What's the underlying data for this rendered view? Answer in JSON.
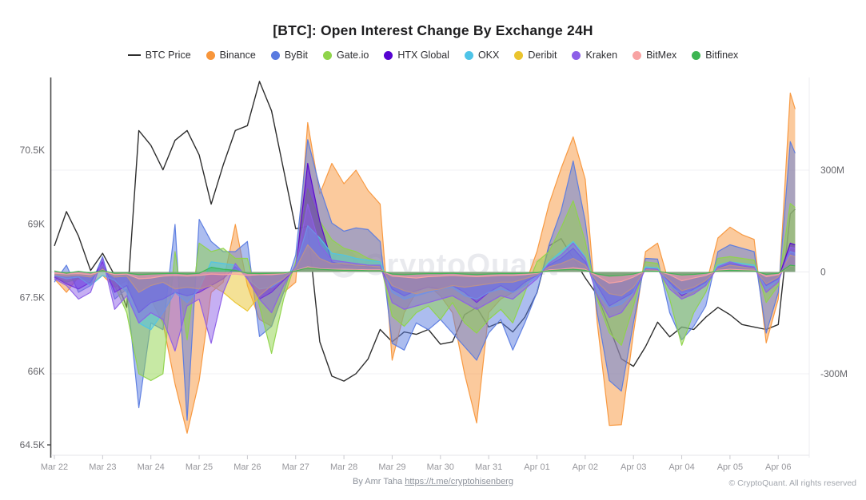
{
  "header": {
    "title": "[BTC]: Open Interest Change By Exchange 24H"
  },
  "watermark": "CryptoQuant",
  "footer": {
    "byline_prefix": "By Amr Taha ",
    "byline_link": "https://t.me/cryptohisenberg",
    "copyright": "© CryptoQuant. All rights reserved"
  },
  "chart_data": {
    "type": "mixed-line-area",
    "title": "[BTC]: Open Interest Change By Exchange 24H",
    "legend_position": "top",
    "grid": "horizontal-faint",
    "x_unit": "days since Mar 22",
    "x_tick_labels": [
      "Mar 22",
      "Mar 23",
      "Mar 24",
      "Mar 25",
      "Mar 26",
      "Mar 27",
      "Mar 28",
      "Mar 29",
      "Mar 30",
      "Mar 31",
      "Apr 01",
      "Apr 02",
      "Apr 03",
      "Apr 04",
      "Apr 05",
      "Apr 06"
    ],
    "x_tick_days": [
      0,
      1,
      2,
      3,
      4,
      5,
      6,
      7,
      8,
      9,
      10,
      11,
      12,
      13,
      14,
      15
    ],
    "left_axis": {
      "unit": "BTC price (USD thousands)",
      "range": [
        64.1,
        72.1
      ],
      "ticks": [
        {
          "v": 70.5,
          "label": "70.5K"
        },
        {
          "v": 69,
          "label": "69K"
        },
        {
          "v": 67.5,
          "label": "67.5K"
        },
        {
          "v": 66,
          "label": "66K"
        },
        {
          "v": 64.5,
          "label": "64.5K"
        }
      ]
    },
    "right_axis": {
      "unit": "Open interest change (USD)",
      "range_m": [
        -560,
        570
      ],
      "ticks": [
        {
          "v": 300,
          "label": "300M"
        },
        {
          "v": 0,
          "label": "0"
        },
        {
          "v": -300,
          "label": "-300M"
        }
      ]
    },
    "x": [
      0,
      0.25,
      0.5,
      0.75,
      1,
      1.25,
      1.5,
      1.75,
      2,
      2.25,
      2.5,
      2.75,
      3,
      3.25,
      3.5,
      3.75,
      4,
      4.25,
      4.5,
      4.75,
      5,
      5.25,
      5.5,
      5.75,
      6,
      6.25,
      6.5,
      6.75,
      7,
      7.25,
      7.5,
      7.75,
      8,
      8.25,
      8.5,
      8.75,
      9,
      9.25,
      9.5,
      9.75,
      10,
      10.25,
      10.5,
      10.75,
      11,
      11.25,
      11.5,
      11.75,
      12,
      12.25,
      12.5,
      12.75,
      13,
      13.25,
      13.5,
      13.75,
      14,
      14.25,
      14.5,
      14.75,
      15,
      15.25,
      15.35
    ],
    "btc_price": {
      "name": "BTC Price",
      "color": "#2e2e2e",
      "axis": "left",
      "values_k": [
        68.55,
        69.25,
        68.75,
        68.05,
        68.4,
        67.95,
        67.3,
        70.9,
        70.6,
        70.1,
        70.7,
        70.9,
        70.4,
        69.4,
        70.2,
        70.9,
        71,
        71.9,
        71.3,
        70.1,
        68.9,
        68.95,
        66.6,
        65.9,
        65.8,
        65.95,
        66.25,
        66.85,
        66.6,
        66.8,
        66.75,
        66.85,
        66.55,
        66.6,
        67.15,
        67.3,
        66.9,
        67,
        66.8,
        67.1,
        67.6,
        68.55,
        68.7,
        68.3,
        67.9,
        67.55,
        66.9,
        66.25,
        66.1,
        66.5,
        67,
        66.7,
        66.9,
        66.85,
        67.1,
        67.3,
        67.15,
        66.95,
        66.9,
        66.85,
        66.95,
        69.2,
        69.3
      ]
    },
    "series": [
      {
        "name": "Binance",
        "color": "#F8963B",
        "values_m": [
          -20,
          -60,
          -15,
          -35,
          -10,
          -45,
          -25,
          -120,
          -80,
          -150,
          -330,
          -475,
          -320,
          -60,
          -30,
          140,
          -40,
          -140,
          -160,
          -60,
          -30,
          440,
          230,
          320,
          260,
          300,
          240,
          200,
          -260,
          -120,
          -60,
          -40,
          -70,
          -120,
          -300,
          -445,
          -120,
          -80,
          -60,
          -40,
          60,
          200,
          305,
          398,
          273,
          -150,
          -452,
          -450,
          -180,
          60,
          85,
          -40,
          -80,
          -60,
          -40,
          100,
          132,
          110,
          96,
          -209,
          -80,
          527,
          480
        ]
      },
      {
        "name": "ByBit",
        "color": "#5A7BE0",
        "values_m": [
          -30,
          20,
          -60,
          -40,
          45,
          -80,
          -50,
          -400,
          -150,
          -170,
          140,
          -437,
          155,
          90,
          60,
          60,
          90,
          -190,
          -160,
          -60,
          50,
          390,
          250,
          144,
          120,
          130,
          125,
          90,
          -210,
          -230,
          -150,
          -170,
          -140,
          -180,
          -220,
          -260,
          -180,
          -140,
          -230,
          -150,
          -60,
          80,
          180,
          327,
          150,
          -120,
          -320,
          -351,
          -150,
          40,
          38,
          -120,
          -200,
          -160,
          -100,
          60,
          80,
          70,
          60,
          -180,
          -60,
          384,
          350
        ]
      },
      {
        "name": "Gate.io",
        "color": "#8FD44A",
        "values_m": [
          -15,
          -30,
          -20,
          -25,
          15,
          -40,
          -120,
          -300,
          -320,
          -300,
          60,
          -200,
          85,
          60,
          70,
          40,
          40,
          -100,
          -240,
          -80,
          30,
          245,
          150,
          95,
          70,
          60,
          40,
          30,
          -130,
          -160,
          -120,
          -100,
          -140,
          -90,
          -150,
          -180,
          -140,
          -110,
          -150,
          -60,
          30,
          60,
          130,
          210,
          90,
          -80,
          -179,
          -216,
          -100,
          30,
          25,
          -80,
          -216,
          -120,
          -60,
          40,
          45,
          40,
          35,
          -90,
          -40,
          202,
          190
        ]
      },
      {
        "name": "HTX Global",
        "color": "#5603D1",
        "values_m": [
          -15,
          -35,
          -50,
          -30,
          30,
          -60,
          -40,
          -120,
          -90,
          -80,
          -60,
          -70,
          -60,
          -40,
          -20,
          15,
          -15,
          -80,
          -60,
          -25,
          10,
          320,
          150,
          30,
          20,
          20,
          15,
          15,
          -50,
          -70,
          -55,
          -45,
          -50,
          -40,
          -60,
          -90,
          -60,
          -40,
          -60,
          -30,
          -10,
          20,
          40,
          70,
          30,
          -40,
          -100,
          -80,
          -60,
          10,
          8,
          -30,
          -70,
          -50,
          -30,
          12,
          25,
          18,
          12,
          -40,
          -20,
          85,
          80
        ]
      },
      {
        "name": "OKX",
        "color": "#4EC4E8",
        "values_m": [
          -10,
          -20,
          -15,
          -40,
          -10,
          -25,
          -60,
          -150,
          -170,
          -120,
          -60,
          -90,
          -50,
          30,
          25,
          20,
          -20,
          -50,
          -45,
          -20,
          15,
          136,
          100,
          55,
          50,
          40,
          35,
          30,
          -60,
          -80,
          -70,
          -60,
          -50,
          -45,
          -70,
          -80,
          -60,
          -50,
          -60,
          -40,
          -15,
          30,
          60,
          90,
          45,
          -60,
          -104,
          -95,
          -60,
          15,
          12,
          -40,
          -65,
          -55,
          -35,
          20,
          30,
          25,
          20,
          -50,
          -25,
          60,
          55
        ]
      },
      {
        "name": "Deribit",
        "color": "#EAC42E",
        "values_m": [
          -8,
          -12,
          -10,
          -15,
          8,
          -15,
          -12,
          -60,
          -40,
          -30,
          -50,
          -45,
          -50,
          -40,
          -60,
          -90,
          -115,
          -70,
          -40,
          -20,
          10,
          80,
          40,
          25,
          25,
          20,
          18,
          15,
          -40,
          -55,
          -64,
          -55,
          -50,
          -40,
          -45,
          -40,
          -35,
          -30,
          -30,
          -20,
          -8,
          15,
          25,
          40,
          20,
          -30,
          -64,
          -70,
          -45,
          8,
          6,
          -25,
          -55,
          -45,
          -25,
          10,
          20,
          15,
          10,
          -35,
          -15,
          50,
          45
        ]
      },
      {
        "name": "Kraken",
        "color": "#8D5FE8",
        "values_m": [
          -20,
          -40,
          -80,
          -60,
          40,
          -110,
          -70,
          -150,
          -120,
          -140,
          -233,
          -100,
          -80,
          -210,
          -60,
          25,
          -20,
          -80,
          -120,
          -40,
          20,
          200,
          80,
          35,
          30,
          25,
          20,
          20,
          -90,
          -110,
          -100,
          -90,
          -80,
          -70,
          -90,
          -110,
          -90,
          -70,
          -80,
          -50,
          -20,
          25,
          50,
          85,
          40,
          -70,
          -134,
          -120,
          -70,
          10,
          8,
          -50,
          -80,
          -65,
          -40,
          15,
          30,
          20,
          15,
          -60,
          -30,
          73,
          70
        ]
      },
      {
        "name": "BitMex",
        "color": "#F8A3A3",
        "values_m": [
          -4,
          -6,
          -5,
          -8,
          3,
          -8,
          -6,
          -20,
          -18,
          -12,
          -10,
          -12,
          -10,
          -6,
          -8,
          -6,
          -10,
          -8,
          -8,
          -5,
          4,
          15,
          10,
          8,
          8,
          7,
          6,
          6,
          -12,
          -15,
          -18,
          -14,
          -12,
          -10,
          -12,
          -14,
          -12,
          -10,
          -10,
          -8,
          -4,
          6,
          8,
          12,
          8,
          -12,
          -33,
          -28,
          -15,
          4,
          3,
          -8,
          -26,
          -18,
          -10,
          5,
          8,
          6,
          5,
          -14,
          -8,
          18,
          16
        ]
      },
      {
        "name": "Bitfinex",
        "color": "#3DB552",
        "values_m": [
          3,
          -4,
          2,
          -3,
          4,
          -4,
          -3,
          -8,
          -6,
          -5,
          -4,
          -6,
          -4,
          14,
          8,
          5,
          -4,
          -5,
          -4,
          -3,
          3,
          12,
          8,
          6,
          5,
          5,
          4,
          4,
          -6,
          -8,
          -6,
          -5,
          -5,
          -4,
          -6,
          -8,
          -6,
          -5,
          -5,
          -4,
          -2,
          4,
          6,
          8,
          5,
          -6,
          -12,
          -10,
          -6,
          3,
          2,
          -4,
          -9,
          -7,
          -4,
          3,
          5,
          4,
          3,
          -7,
          -4,
          20,
          18
        ]
      }
    ]
  }
}
